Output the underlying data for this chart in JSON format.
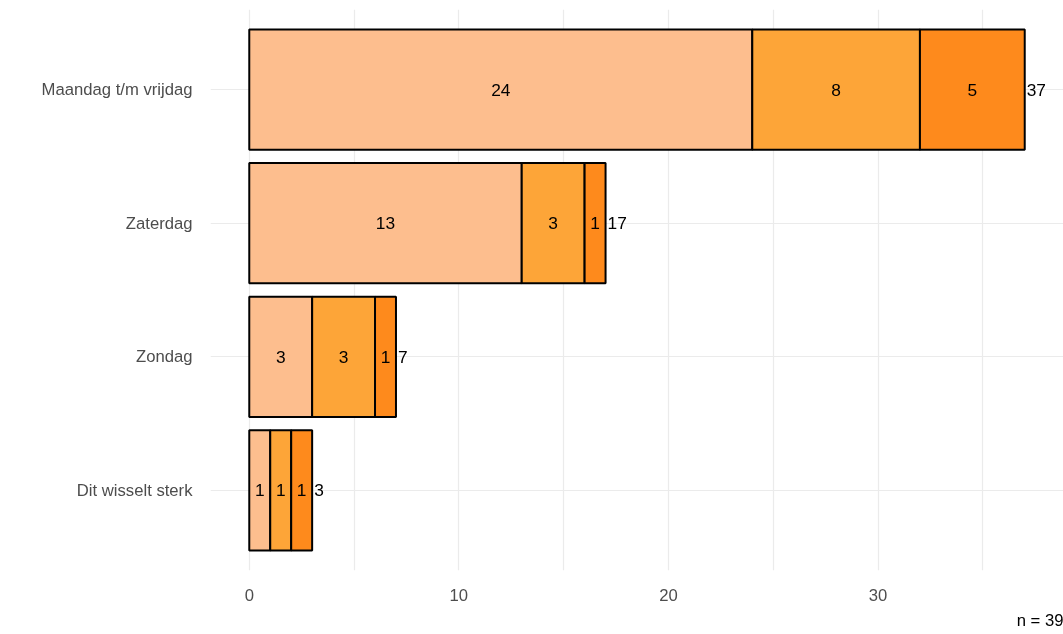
{
  "chart_data": {
    "type": "bar",
    "orientation": "horizontal",
    "stacked": true,
    "categories": [
      "Maandag t/m vrijdag",
      "Zaterdag",
      "Zondag",
      "Dit wisselt sterk"
    ],
    "series": [
      {
        "color": "#fdbe8e",
        "values": [
          24,
          13,
          3,
          1
        ]
      },
      {
        "color": "#fda538",
        "values": [
          8,
          3,
          3,
          1
        ]
      },
      {
        "color": "#fe8a1c",
        "values": [
          5,
          1,
          1,
          1
        ]
      }
    ],
    "data_labels": true,
    "totals": [
      "37",
      "17",
      "7",
      "3"
    ],
    "xlim": [
      -1.85,
      38.85
    ],
    "xticks": [
      0,
      {
        "value": 5,
        "label": null
      },
      10,
      {
        "value": 15,
        "label": null
      },
      20,
      {
        "value": 25,
        "label": null
      },
      30,
      {
        "value": 35,
        "label": null
      }
    ],
    "grid": true,
    "annotations": [
      "n = 39"
    ]
  }
}
